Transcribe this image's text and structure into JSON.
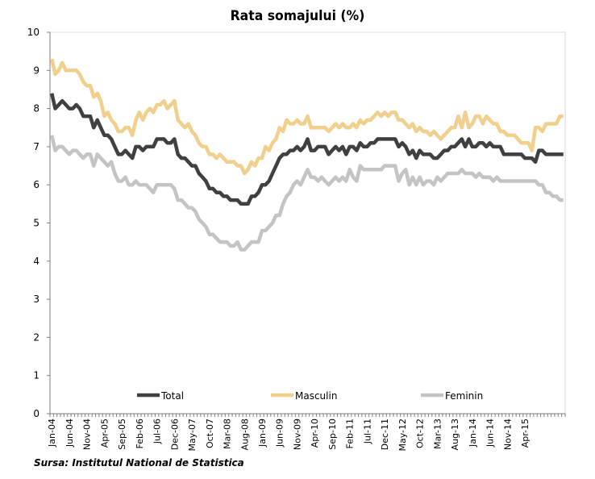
{
  "chart_data": {
    "type": "line",
    "title": "Rata somajului (%)",
    "source": "Sursa: Institutul National de Statistica",
    "xlabel": "",
    "ylabel": "",
    "ylim": [
      0,
      10
    ],
    "yticks": [
      0,
      1,
      2,
      3,
      4,
      5,
      6,
      7,
      8,
      9,
      10
    ],
    "grid": false,
    "legend_position": "bottom-inside",
    "x_tick_labels": [
      "Jan-04",
      "Jun-04",
      "Nov-04",
      "Apr-05",
      "Sep-05",
      "Feb-06",
      "Jul-06",
      "Dec-06",
      "May-07",
      "Oct-07",
      "Mar-08",
      "Aug-08",
      "Jan-09",
      "Jun-09",
      "Nov-09",
      "Apr-10",
      "Sep-10",
      "Feb-11",
      "Jul-11",
      "Dec-11",
      "May-12",
      "Oct-12",
      "Mar-13",
      "Aug-13",
      "Jan-14",
      "Jun-14",
      "Nov-14",
      "Apr-15"
    ],
    "x_start": "Jan-04",
    "x_end": "Jul-15",
    "series": [
      {
        "name": "Total",
        "color": "#404040",
        "values": [
          8.4,
          8.0,
          8.1,
          8.2,
          8.1,
          8.0,
          8.0,
          8.1,
          8.0,
          7.8,
          7.8,
          7.8,
          7.5,
          7.7,
          7.5,
          7.3,
          7.3,
          7.2,
          7.0,
          6.8,
          6.8,
          6.9,
          6.8,
          6.7,
          7.0,
          7.0,
          6.9,
          7.0,
          7.0,
          7.0,
          7.2,
          7.2,
          7.2,
          7.1,
          7.1,
          7.2,
          6.8,
          6.7,
          6.7,
          6.6,
          6.5,
          6.5,
          6.3,
          6.2,
          6.1,
          5.9,
          5.9,
          5.8,
          5.8,
          5.7,
          5.7,
          5.6,
          5.6,
          5.6,
          5.5,
          5.5,
          5.5,
          5.7,
          5.7,
          5.8,
          6.0,
          6.0,
          6.1,
          6.3,
          6.5,
          6.7,
          6.8,
          6.8,
          6.9,
          6.9,
          7.0,
          6.9,
          7.0,
          7.2,
          6.9,
          6.9,
          7.0,
          7.0,
          7.0,
          6.8,
          6.9,
          7.0,
          6.9,
          7.0,
          6.8,
          7.0,
          7.0,
          6.9,
          7.1,
          7.0,
          7.0,
          7.1,
          7.1,
          7.2,
          7.2,
          7.2,
          7.2,
          7.2,
          7.2,
          7.0,
          7.1,
          7.0,
          6.8,
          6.9,
          6.7,
          6.9,
          6.8,
          6.8,
          6.8,
          6.7,
          6.7,
          6.8,
          6.9,
          6.9,
          7.0,
          7.0,
          7.1,
          7.2,
          7.0,
          7.2,
          7.0,
          7.0,
          7.1,
          7.1,
          7.0,
          7.1,
          7.0,
          7.0,
          7.0,
          6.8,
          6.8,
          6.8,
          6.8,
          6.8,
          6.8,
          6.7,
          6.7,
          6.7,
          6.6,
          6.9,
          6.9,
          6.8,
          6.8,
          6.8,
          6.8,
          6.8,
          6.8
        ]
      },
      {
        "name": "Masculin",
        "color": "#f1cf8c",
        "values": [
          9.3,
          8.9,
          9.0,
          9.2,
          9.0,
          9.0,
          9.0,
          9.0,
          8.9,
          8.7,
          8.6,
          8.6,
          8.3,
          8.4,
          8.2,
          7.8,
          7.9,
          7.7,
          7.6,
          7.4,
          7.4,
          7.5,
          7.5,
          7.3,
          7.7,
          7.9,
          7.7,
          7.9,
          8.0,
          7.9,
          8.1,
          8.1,
          8.2,
          8.0,
          8.1,
          8.2,
          7.7,
          7.6,
          7.5,
          7.6,
          7.4,
          7.3,
          7.1,
          7.0,
          7.0,
          6.8,
          6.8,
          6.7,
          6.8,
          6.7,
          6.6,
          6.6,
          6.6,
          6.5,
          6.5,
          6.3,
          6.4,
          6.6,
          6.5,
          6.7,
          6.7,
          7.0,
          6.9,
          7.1,
          7.2,
          7.5,
          7.4,
          7.7,
          7.6,
          7.6,
          7.7,
          7.6,
          7.6,
          7.8,
          7.5,
          7.5,
          7.5,
          7.5,
          7.5,
          7.4,
          7.5,
          7.6,
          7.5,
          7.6,
          7.5,
          7.5,
          7.6,
          7.5,
          7.7,
          7.6,
          7.7,
          7.7,
          7.8,
          7.9,
          7.8,
          7.9,
          7.8,
          7.9,
          7.9,
          7.7,
          7.7,
          7.6,
          7.5,
          7.6,
          7.4,
          7.5,
          7.4,
          7.4,
          7.3,
          7.4,
          7.3,
          7.2,
          7.3,
          7.4,
          7.5,
          7.5,
          7.8,
          7.5,
          7.9,
          7.5,
          7.6,
          7.8,
          7.8,
          7.6,
          7.8,
          7.7,
          7.6,
          7.6,
          7.4,
          7.4,
          7.3,
          7.3,
          7.3,
          7.2,
          7.1,
          7.1,
          7.1,
          6.9,
          7.5,
          7.5,
          7.4,
          7.6,
          7.6,
          7.6,
          7.6,
          7.8,
          7.8
        ]
      },
      {
        "name": "Feminin",
        "color": "#c4c4c4",
        "values": [
          7.3,
          6.9,
          7.0,
          7.0,
          6.9,
          6.8,
          6.9,
          6.9,
          6.8,
          6.7,
          6.8,
          6.8,
          6.5,
          6.8,
          6.7,
          6.6,
          6.5,
          6.6,
          6.3,
          6.1,
          6.1,
          6.2,
          6.0,
          6.0,
          6.1,
          6.0,
          6.0,
          6.0,
          5.9,
          5.8,
          6.0,
          6.0,
          6.0,
          6.0,
          6.0,
          5.9,
          5.6,
          5.6,
          5.5,
          5.4,
          5.4,
          5.3,
          5.1,
          5.0,
          4.9,
          4.7,
          4.7,
          4.6,
          4.5,
          4.5,
          4.5,
          4.4,
          4.4,
          4.5,
          4.3,
          4.3,
          4.4,
          4.5,
          4.5,
          4.5,
          4.8,
          4.8,
          4.9,
          5.0,
          5.2,
          5.2,
          5.5,
          5.7,
          5.8,
          6.0,
          6.1,
          6.0,
          6.2,
          6.4,
          6.2,
          6.2,
          6.1,
          6.2,
          6.1,
          6.0,
          6.1,
          6.2,
          6.1,
          6.2,
          6.1,
          6.4,
          6.2,
          6.1,
          6.5,
          6.4,
          6.4,
          6.4,
          6.4,
          6.4,
          6.4,
          6.5,
          6.5,
          6.5,
          6.5,
          6.1,
          6.3,
          6.4,
          6.0,
          6.2,
          6.0,
          6.2,
          6.0,
          6.1,
          6.1,
          6.0,
          6.2,
          6.1,
          6.2,
          6.3,
          6.3,
          6.3,
          6.3,
          6.4,
          6.3,
          6.3,
          6.3,
          6.2,
          6.3,
          6.2,
          6.2,
          6.2,
          6.1,
          6.2,
          6.1,
          6.1,
          6.1,
          6.1,
          6.1,
          6.1,
          6.1,
          6.1,
          6.1,
          6.1,
          6.1,
          6.0,
          6.0,
          5.8,
          5.8,
          5.7,
          5.7,
          5.6,
          5.6
        ]
      }
    ]
  }
}
